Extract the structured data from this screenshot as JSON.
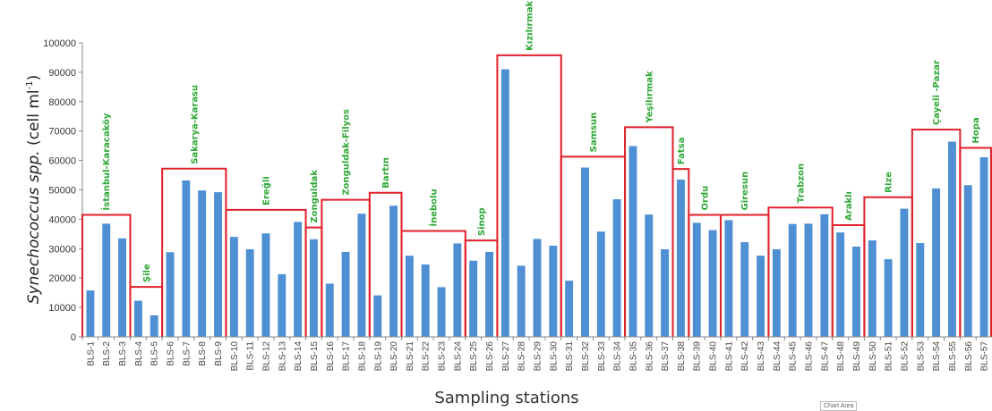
{
  "chart_data": {
    "type": "bar",
    "xlabel": "Sampling stations",
    "ylabel": {
      "italic": "Synechococcus spp.",
      "unit_pre": " (cell ml",
      "unit_sup": "-1",
      "unit_post": ")"
    },
    "ylim": [
      0,
      100000
    ],
    "yticks": [
      0,
      10000,
      20000,
      30000,
      40000,
      50000,
      60000,
      70000,
      80000,
      90000,
      100000
    ],
    "categories": [
      "BLS-1",
      "BLS-2",
      "BLS-3",
      "BLS-4",
      "BLS-5",
      "BLS-6",
      "BLS-7",
      "BLS-8",
      "BLS-9",
      "BLS-10",
      "BLS-11",
      "BLS-12",
      "BLS-13",
      "BLS-14",
      "BLS-15",
      "BLS-16",
      "BLS-17",
      "BLS-18",
      "BLS-19",
      "BLS-20",
      "BLS-21",
      "BLS-22",
      "BLS-23",
      "BLS-24",
      "BLS-25",
      "BLS-26",
      "BLS-27",
      "BLS-28",
      "BLS-29",
      "BLS-30",
      "BLS-31",
      "BLS-32",
      "BLS-33",
      "BLS-34",
      "BLS-35",
      "BLS-36",
      "BLS-37",
      "BLS-38",
      "BLS-39",
      "BLS-40",
      "BLS-41",
      "BLS-42",
      "BLS-43",
      "BLS-44",
      "BLS-45",
      "BLS-46",
      "BLS-47",
      "BLS-48",
      "BLS-49",
      "BLS-50",
      "BLS-51",
      "BLS-52",
      "BLS-53",
      "BLS-54",
      "BLS-55",
      "BLS-56",
      "BLS-57"
    ],
    "values": [
      15800,
      38500,
      33500,
      12300,
      7300,
      28800,
      53200,
      49800,
      49200,
      34000,
      29800,
      35200,
      21300,
      39100,
      33200,
      18100,
      28900,
      41900,
      14100,
      44600,
      27600,
      24600,
      16900,
      31800,
      25900,
      28900,
      91000,
      24200,
      33300,
      31000,
      19100,
      57600,
      35800,
      46800,
      64900,
      41600,
      29800,
      53500,
      38800,
      36300,
      39700,
      32200,
      27600,
      29800,
      38400,
      38500,
      41700,
      35500,
      30700,
      32800,
      26400,
      43600,
      31900,
      50500,
      66400,
      51600,
      61100
    ],
    "groups": [
      {
        "label": "İstanbul-Karacaköy",
        "start": 0,
        "end": 2,
        "height": 41500
      },
      {
        "label": "Şile",
        "start": 3,
        "end": 4,
        "height": 17000
      },
      {
        "label": "Sakarya-Karasu",
        "start": 5,
        "end": 8,
        "height": 57200
      },
      {
        "label": "Ereğli",
        "start": 9,
        "end": 13,
        "height": 43200
      },
      {
        "label": "Zonguldak",
        "start": 14,
        "end": 14,
        "height": 37200
      },
      {
        "label": "Zonguldak-Filyos",
        "start": 15,
        "end": 17,
        "height": 46600
      },
      {
        "label": "Bartın",
        "start": 18,
        "end": 19,
        "height": 49000
      },
      {
        "label": "İnebolu",
        "start": 20,
        "end": 23,
        "height": 36000
      },
      {
        "label": "Sinop",
        "start": 24,
        "end": 25,
        "height": 32800
      },
      {
        "label": "Kızılırmak",
        "start": 26,
        "end": 29,
        "height": 95800
      },
      {
        "label": "Samsun",
        "start": 30,
        "end": 33,
        "height": 61300
      },
      {
        "label": "Yeşilırmak",
        "start": 34,
        "end": 36,
        "height": 71300
      },
      {
        "label": "Fatsa",
        "start": 37,
        "end": 37,
        "height": 57100
      },
      {
        "label": "Ordu",
        "start": 38,
        "end": 39,
        "height": 41500
      },
      {
        "label": "Giresun",
        "start": 40,
        "end": 42,
        "height": 41500
      },
      {
        "label": "Trabzon",
        "start": 43,
        "end": 46,
        "height": 44000
      },
      {
        "label": "Araklı",
        "start": 47,
        "end": 48,
        "height": 38000
      },
      {
        "label": "Rize",
        "start": 49,
        "end": 51,
        "height": 47500
      },
      {
        "label": "Çayeli -Pazar",
        "start": 52,
        "end": 54,
        "height": 70500
      },
      {
        "label": "Hopa",
        "start": 55,
        "end": 56,
        "height": 64300
      }
    ],
    "colors": {
      "bar": "#4f8fd3",
      "box": "#e0202a",
      "region_label": "#2ea836"
    },
    "grid": false
  },
  "overlay": {
    "chart_area_label": "Chart Area"
  }
}
